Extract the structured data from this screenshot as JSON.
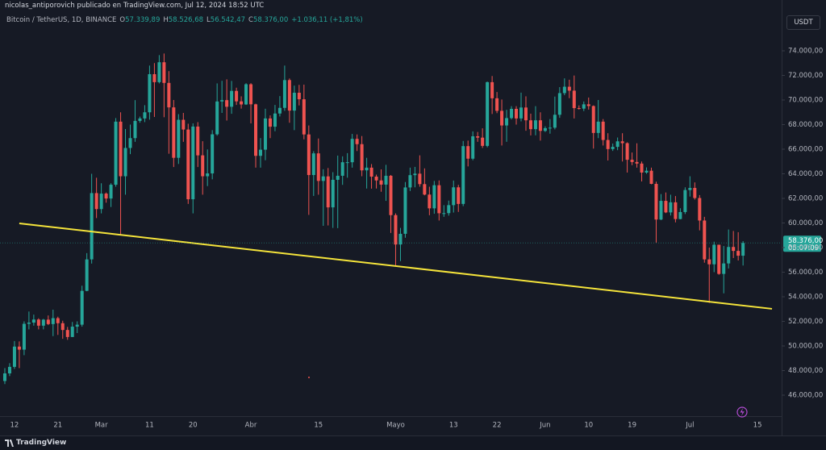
{
  "header": {
    "author": "nicolas_antiporovich publicado en TradingView.com, Jul 12, 2024 18:52 UTC",
    "symbol": "Bitcoin / TetherUS, 1D, BINANCE",
    "open_label": "O",
    "open": "57.339,89",
    "high_label": "H",
    "high": "58.526,68",
    "low_label": "L",
    "low": "56.542,47",
    "close_label": "C",
    "close": "58.376,00",
    "change": "+1.036,11 (+1,81%)",
    "currency": "USDT"
  },
  "footer": {
    "brand": "TradingView"
  },
  "chart_data": {
    "type": "candlestick",
    "up_color": "#26a69a",
    "down_color": "#ef5350",
    "grid": true,
    "xlim": [
      "2024-02-09",
      "2024-07-20"
    ],
    "ylim": [
      44360,
      76820
    ],
    "yticks": [
      {
        "value": 46000,
        "label": "46.000,00"
      },
      {
        "value": 48000,
        "label": "48.000,00"
      },
      {
        "value": 50000,
        "label": "50.000,00"
      },
      {
        "value": 52000,
        "label": "52.000,00"
      },
      {
        "value": 54000,
        "label": "54.000,00"
      },
      {
        "value": 56000,
        "label": "56.000,00"
      },
      {
        "value": 58000,
        "label": "58.000,00"
      },
      {
        "value": 60000,
        "label": "60.000,00"
      },
      {
        "value": 62000,
        "label": "62.000,00"
      },
      {
        "value": 64000,
        "label": "64.000,00"
      },
      {
        "value": 66000,
        "label": "66.000,00"
      },
      {
        "value": 68000,
        "label": "68.000,00"
      },
      {
        "value": 70000,
        "label": "70.000,00"
      },
      {
        "value": 72000,
        "label": "72.000,00"
      },
      {
        "value": 74000,
        "label": "74.000,00"
      }
    ],
    "xticks": [
      {
        "value": "2024-02-12",
        "label": "12"
      },
      {
        "value": "2024-02-21",
        "label": "21"
      },
      {
        "value": "2024-03-01",
        "label": "Mar"
      },
      {
        "value": "2024-03-11",
        "label": "11"
      },
      {
        "value": "2024-03-20",
        "label": "20"
      },
      {
        "value": "2024-04-01",
        "label": "Abr"
      },
      {
        "value": "2024-04-15",
        "label": "15"
      },
      {
        "value": "2024-05-01",
        "label": "Mayo"
      },
      {
        "value": "2024-05-13",
        "label": "13"
      },
      {
        "value": "2024-05-22",
        "label": "22"
      },
      {
        "value": "2024-06-01",
        "label": "Jun"
      },
      {
        "value": "2024-06-10",
        "label": "10"
      },
      {
        "value": "2024-06-19",
        "label": "19"
      },
      {
        "value": "2024-07-01",
        "label": "Jul"
      },
      {
        "value": "2024-07-15",
        "label": "15"
      }
    ],
    "last_price": {
      "value": 58376,
      "label": "58.376,00",
      "countdown": "05:07:09"
    },
    "trendline": {
      "x": [
        "2024-02-13",
        "2024-07-18"
      ],
      "y": [
        59970,
        53020
      ],
      "color": "#f5e43b"
    },
    "x": [
      "2024-02-10",
      "2024-02-11",
      "2024-02-12",
      "2024-02-13",
      "2024-02-14",
      "2024-02-15",
      "2024-02-16",
      "2024-02-17",
      "2024-02-18",
      "2024-02-19",
      "2024-02-20",
      "2024-02-21",
      "2024-02-22",
      "2024-02-23",
      "2024-02-24",
      "2024-02-25",
      "2024-02-26",
      "2024-02-27",
      "2024-02-28",
      "2024-02-29",
      "2024-03-01",
      "2024-03-02",
      "2024-03-03",
      "2024-03-04",
      "2024-03-05",
      "2024-03-06",
      "2024-03-07",
      "2024-03-08",
      "2024-03-09",
      "2024-03-10",
      "2024-03-11",
      "2024-03-12",
      "2024-03-13",
      "2024-03-14",
      "2024-03-15",
      "2024-03-16",
      "2024-03-17",
      "2024-03-18",
      "2024-03-19",
      "2024-03-20",
      "2024-03-21",
      "2024-03-22",
      "2024-03-23",
      "2024-03-24",
      "2024-03-25",
      "2024-03-26",
      "2024-03-27",
      "2024-03-28",
      "2024-03-29",
      "2024-03-30",
      "2024-03-31",
      "2024-04-01",
      "2024-04-02",
      "2024-04-03",
      "2024-04-04",
      "2024-04-05",
      "2024-04-06",
      "2024-04-07",
      "2024-04-08",
      "2024-04-09",
      "2024-04-10",
      "2024-04-11",
      "2024-04-12",
      "2024-04-13",
      "2024-04-14",
      "2024-04-15",
      "2024-04-16",
      "2024-04-17",
      "2024-04-18",
      "2024-04-19",
      "2024-04-20",
      "2024-04-21",
      "2024-04-22",
      "2024-04-23",
      "2024-04-24",
      "2024-04-25",
      "2024-04-26",
      "2024-04-27",
      "2024-04-28",
      "2024-04-29",
      "2024-04-30",
      "2024-05-01",
      "2024-05-02",
      "2024-05-03",
      "2024-05-04",
      "2024-05-05",
      "2024-05-06",
      "2024-05-07",
      "2024-05-08",
      "2024-05-09",
      "2024-05-10",
      "2024-05-11",
      "2024-05-12",
      "2024-05-13",
      "2024-05-14",
      "2024-05-15",
      "2024-05-16",
      "2024-05-17",
      "2024-05-18",
      "2024-05-19",
      "2024-05-20",
      "2024-05-21",
      "2024-05-22",
      "2024-05-23",
      "2024-05-24",
      "2024-05-25",
      "2024-05-26",
      "2024-05-27",
      "2024-05-28",
      "2024-05-29",
      "2024-05-30",
      "2024-05-31",
      "2024-06-01",
      "2024-06-02",
      "2024-06-03",
      "2024-06-04",
      "2024-06-05",
      "2024-06-06",
      "2024-06-07",
      "2024-06-08",
      "2024-06-09",
      "2024-06-10",
      "2024-06-11",
      "2024-06-12",
      "2024-06-13",
      "2024-06-14",
      "2024-06-15",
      "2024-06-16",
      "2024-06-17",
      "2024-06-18",
      "2024-06-19",
      "2024-06-20",
      "2024-06-21",
      "2024-06-22",
      "2024-06-23",
      "2024-06-24",
      "2024-06-25",
      "2024-06-26",
      "2024-06-27",
      "2024-06-28",
      "2024-06-29",
      "2024-06-30",
      "2024-07-01",
      "2024-07-02",
      "2024-07-03",
      "2024-07-04",
      "2024-07-05",
      "2024-07-06",
      "2024-07-07",
      "2024-07-08",
      "2024-07-09",
      "2024-07-10",
      "2024-07-11",
      "2024-07-12"
    ],
    "open": [
      47150,
      47770,
      48300,
      49950,
      49700,
      51800,
      51900,
      52150,
      51650,
      52140,
      51780,
      52260,
      51850,
      51300,
      50730,
      51570,
      51730,
      54480,
      57040,
      62430,
      61130,
      62390,
      61990,
      63110,
      68240,
      63800,
      66100,
      66900,
      68300,
      68500,
      69000,
      72100,
      71450,
      73070,
      71390,
      69400,
      65300,
      68390,
      67600,
      61930,
      67840,
      65500,
      63800,
      64030,
      67210,
      69880,
      69990,
      69450,
      70740,
      69890,
      69640,
      71280,
      69650,
      65460,
      65960,
      68500,
      67830,
      68900,
      69360,
      71620,
      69140,
      70590,
      70060,
      67200,
      63900,
      65660,
      63420,
      63790,
      61270,
      63510,
      63840,
      64940,
      64940,
      66840,
      66410,
      64280,
      64500,
      63770,
      63460,
      63120,
      63840,
      60640,
      58250,
      59120,
      62890,
      63890,
      64010,
      63160,
      62310,
      61190,
      63070,
      60790,
      60800,
      61450,
      62900,
      61550,
      66250,
      65230,
      67050,
      66940,
      66270,
      71450,
      70140,
      69120,
      67930,
      68530,
      69280,
      68500,
      69390,
      68350,
      67630,
      68350,
      67490,
      67710,
      67750,
      68800,
      70560,
      71080,
      70760,
      69340,
      69300,
      69650,
      69510,
      67320,
      68240,
      66750,
      66010,
      66190,
      66640,
      66490,
      65140,
      64960,
      64830,
      64100,
      64250,
      63180,
      60280,
      61800,
      60860,
      61680,
      60320,
      60890,
      62680,
      62850,
      62030,
      60200,
      57040,
      56640,
      58230,
      55860,
      56710,
      58050,
      57730,
      57339.89
    ],
    "high": [
      48200,
      48600,
      50400,
      50370,
      52000,
      52800,
      52550,
      52250,
      52200,
      52480,
      52950,
      52380,
      52050,
      51550,
      51950,
      52000,
      54900,
      57550,
      64000,
      63680,
      63230,
      62480,
      63230,
      68530,
      69000,
      67640,
      68000,
      69990,
      68650,
      69580,
      72800,
      73000,
      73650,
      73780,
      72350,
      70000,
      68850,
      68950,
      68070,
      68100,
      68200,
      66650,
      65980,
      67550,
      71350,
      71560,
      71680,
      71550,
      71000,
      70300,
      71370,
      71370,
      69700,
      66900,
      69290,
      68750,
      69600,
      70320,
      72800,
      71750,
      71170,
      71230,
      71250,
      67930,
      65840,
      66870,
      64370,
      64470,
      64130,
      65480,
      65420,
      65680,
      67240,
      67200,
      67070,
      65300,
      64790,
      63930,
      64360,
      64730,
      63900,
      60780,
      59600,
      63330,
      64500,
      64560,
      65500,
      64440,
      62950,
      63420,
      63460,
      61450,
      61820,
      63450,
      63100,
      66670,
      66700,
      67450,
      67400,
      67700,
      71500,
      71950,
      70650,
      70040,
      69200,
      69500,
      69500,
      70600,
      70300,
      68890,
      69500,
      69000,
      67860,
      68450,
      70280,
      71050,
      71760,
      71650,
      71990,
      69560,
      69880,
      70200,
      69560,
      70000,
      68450,
      67300,
      66460,
      66950,
      67300,
      66560,
      65730,
      66480,
      65000,
      64520,
      64500,
      63360,
      62350,
      62480,
      62300,
      62190,
      61200,
      62900,
      63800,
      63300,
      62270,
      60500,
      58000,
      58480,
      58240,
      58130,
      59470,
      59350,
      59250,
      58526.68
    ],
    "low": [
      46900,
      47550,
      48130,
      48200,
      49250,
      51350,
      51650,
      51350,
      51350,
      51700,
      50800,
      50900,
      50580,
      50500,
      50720,
      51050,
      51570,
      54450,
      56700,
      60400,
      60780,
      61650,
      61300,
      62950,
      59000,
      62300,
      65600,
      66600,
      68150,
      68200,
      68400,
      68620,
      71350,
      68600,
      65630,
      64550,
      64800,
      66600,
      61550,
      60780,
      64550,
      62300,
      63000,
      63550,
      67100,
      68950,
      68330,
      68880,
      69600,
      69300,
      69600,
      68100,
      64500,
      64500,
      65100,
      66900,
      67460,
      68660,
      69120,
      68150,
      67550,
      69560,
      66800,
      60660,
      62200,
      62300,
      59770,
      59800,
      59600,
      59580,
      63100,
      63680,
      64500,
      65850,
      63800,
      62800,
      62790,
      62800,
      62540,
      61800,
      59190,
      56550,
      56900,
      58800,
      62600,
      62900,
      62950,
      62250,
      60630,
      60750,
      60200,
      60500,
      60600,
      60850,
      60900,
      61370,
      64600,
      65100,
      66600,
      66100,
      66150,
      68860,
      68930,
      66300,
      66600,
      68420,
      68000,
      68260,
      67500,
      67120,
      67130,
      66700,
      67400,
      67260,
      67610,
      68550,
      70390,
      70150,
      68500,
      69220,
      69100,
      69220,
      66050,
      66900,
      66300,
      65080,
      65860,
      65920,
      65000,
      64100,
      64700,
      64500,
      63380,
      64000,
      63150,
      58400,
      60230,
      60800,
      60610,
      60050,
      60300,
      60730,
      62150,
      61900,
      59400,
      56770,
      53500,
      56000,
      55790,
      54280,
      56300,
      57150,
      56950,
      56542.47
    ],
    "close": [
      47770,
      48300,
      49950,
      49700,
      51800,
      51900,
      52150,
      51650,
      52140,
      51780,
      52260,
      51850,
      51300,
      50730,
      51570,
      51730,
      54480,
      57040,
      62430,
      61130,
      62390,
      61990,
      63110,
      68240,
      63800,
      66100,
      66900,
      68300,
      68500,
      69000,
      72100,
      71450,
      73070,
      71390,
      69400,
      65300,
      68390,
      67600,
      61930,
      67840,
      65500,
      63800,
      64030,
      67210,
      69880,
      69990,
      69450,
      70740,
      69890,
      69640,
      71280,
      69650,
      65460,
      65960,
      68500,
      67830,
      68900,
      69360,
      71620,
      69140,
      70590,
      70060,
      67200,
      63900,
      65660,
      63420,
      63790,
      61270,
      63510,
      63840,
      64940,
      64940,
      66840,
      66410,
      64280,
      64500,
      63770,
      63460,
      63120,
      63840,
      60640,
      58250,
      59120,
      62890,
      63890,
      64010,
      63160,
      62310,
      61190,
      63070,
      60790,
      60800,
      61450,
      62900,
      61550,
      66250,
      65230,
      67050,
      66940,
      66270,
      71450,
      70140,
      69120,
      67930,
      68530,
      69280,
      68500,
      69390,
      68350,
      67630,
      68350,
      67490,
      67710,
      67750,
      68800,
      70560,
      71080,
      70760,
      69340,
      69300,
      69650,
      69510,
      67320,
      68240,
      66750,
      66010,
      66190,
      66640,
      66490,
      65140,
      64960,
      64830,
      64100,
      64250,
      63180,
      60280,
      61800,
      60860,
      61680,
      60320,
      60890,
      62680,
      62850,
      62030,
      60200,
      57040,
      56640,
      58230,
      55860,
      56710,
      58050,
      57730,
      57340,
      58376
    ]
  }
}
